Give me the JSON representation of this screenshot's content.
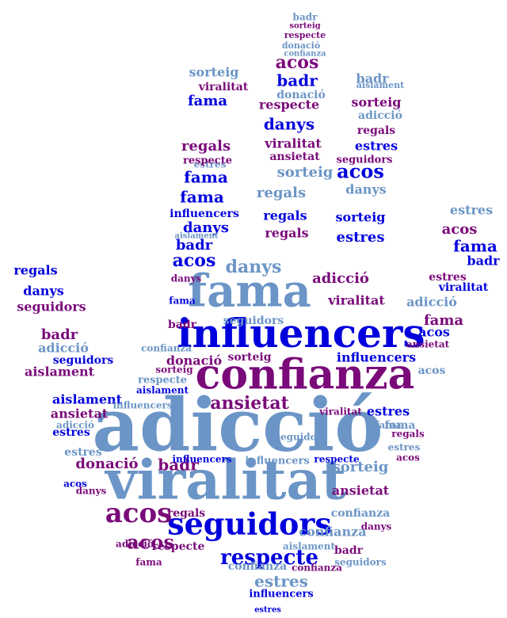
{
  "words": {
    "adiccio": "adicció",
    "viralitat": "viralitat",
    "confianza": "confianza",
    "influencers": "influencers",
    "fama": "fama",
    "seguidors": "seguidors",
    "acos": "acos",
    "respecte": "respecte",
    "ansietat": "ansietat",
    "donacio": "donació",
    "badr": "badr",
    "estres": "estres",
    "sorteig": "sorteig",
    "regals": "regals",
    "danys": "danys",
    "aislament": "aislament"
  },
  "colors": {
    "blue": "#0000dd",
    "light_blue": "#6b95c6",
    "purple": "#7a0a7a"
  }
}
